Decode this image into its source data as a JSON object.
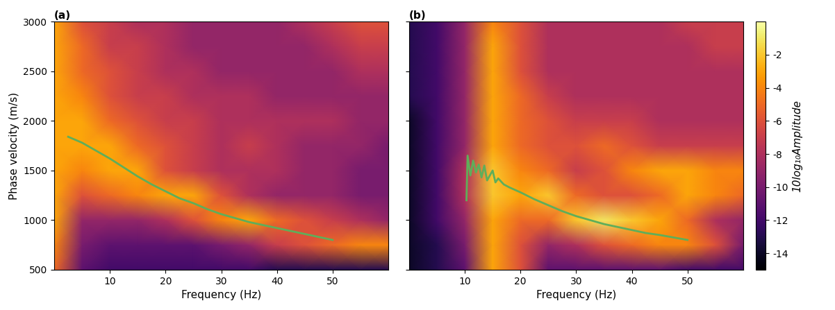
{
  "chart_data": [
    {
      "type": "heatmap",
      "title": "(a)",
      "x_label": "Frequency (Hz)",
      "y_label": "Phase velocity (m/s)",
      "x": [
        0,
        5,
        10,
        15,
        20,
        25,
        30,
        35,
        40,
        45,
        50,
        55,
        60
      ],
      "y": [
        500,
        750,
        1000,
        1250,
        1500,
        1750,
        2000,
        2250,
        2500,
        2750,
        3000
      ],
      "cells": [
        [
          -5,
          -11,
          -12,
          -12,
          -12,
          -12,
          -12,
          -12,
          -13,
          -13,
          -13,
          -13,
          -13
        ],
        [
          -4,
          -10,
          -11,
          -11,
          -11,
          -11,
          -10,
          -9,
          -7,
          -6,
          -5,
          -4,
          -4
        ],
        [
          -3,
          -9,
          -9,
          -9,
          -8,
          -6,
          -4,
          -3,
          -5,
          -6,
          -7,
          -8,
          -9
        ],
        [
          -3,
          -6,
          -5,
          -4,
          -3,
          -3,
          -6,
          -8,
          -9,
          -9,
          -9,
          -10,
          -10
        ],
        [
          -3,
          -4,
          -3,
          -3,
          -6,
          -7,
          -8,
          -8,
          -8,
          -9,
          -9,
          -10,
          -10
        ],
        [
          -3,
          -3,
          -3,
          -5,
          -6,
          -7,
          -8,
          -7,
          -8,
          -9,
          -9,
          -9,
          -10
        ],
        [
          -3,
          -3,
          -5,
          -6,
          -7,
          -7,
          -8,
          -8,
          -8,
          -8,
          -8,
          -9,
          -9
        ],
        [
          -3,
          -4,
          -6,
          -7,
          -7,
          -8,
          -8,
          -8,
          -9,
          -9,
          -9,
          -9,
          -9
        ],
        [
          -3,
          -5,
          -6,
          -7,
          -8,
          -8,
          -9,
          -9,
          -9,
          -9,
          -9,
          -8,
          -8
        ],
        [
          -3,
          -5,
          -7,
          -7,
          -8,
          -9,
          -9,
          -9,
          -9,
          -9,
          -8,
          -7,
          -7
        ],
        [
          -3,
          -6,
          -7,
          -8,
          -8,
          -9,
          -9,
          -9,
          -9,
          -8,
          -7,
          -6,
          -6
        ]
      ],
      "line": {
        "color": "#5fae5a",
        "line_style": "solid",
        "x": [
          2.5,
          5,
          7.5,
          10,
          12.5,
          15,
          17.5,
          20,
          22.5,
          25,
          27.5,
          30,
          32.5,
          35,
          37.5,
          40,
          42.5,
          45,
          47.5,
          50
        ],
        "values": [
          1840,
          1780,
          1700,
          1620,
          1530,
          1440,
          1360,
          1290,
          1220,
          1170,
          1110,
          1060,
          1020,
          980,
          950,
          920,
          890,
          860,
          830,
          800
        ]
      },
      "xlim": [
        0,
        60
      ],
      "xticks": [
        10,
        20,
        30,
        40,
        50
      ],
      "ylim": [
        500,
        3000
      ],
      "yticks": [
        500,
        1000,
        1500,
        2000,
        2500,
        3000
      ]
    },
    {
      "type": "heatmap",
      "title": "(b)",
      "x_label": "Frequency (Hz)",
      "tick_labels": "x",
      "x": [
        0,
        5,
        10,
        15,
        20,
        25,
        30,
        35,
        40,
        45,
        50,
        55,
        60
      ],
      "y": [
        500,
        750,
        1000,
        1250,
        1500,
        1750,
        2000,
        2250,
        2500,
        2750,
        3000
      ],
      "cells": [
        [
          -14,
          -13,
          -11,
          -3,
          -6,
          -11,
          -11,
          -11,
          -11,
          -11,
          -12,
          -12,
          -12
        ],
        [
          -14,
          -13,
          -10,
          -3,
          -6,
          -9,
          -8,
          -6,
          -5,
          -4,
          -4,
          -6,
          -10
        ],
        [
          -14,
          -12,
          -9,
          -3,
          -5,
          -5,
          -2,
          -1,
          -2,
          -3,
          -5,
          -8,
          -9
        ],
        [
          -14,
          -12,
          -8,
          -2,
          -3,
          -2,
          -5,
          -6,
          -6,
          -5,
          -3,
          -4,
          -5
        ],
        [
          -14,
          -12,
          -8,
          -2,
          -4,
          -5,
          -7,
          -6,
          -4,
          -3,
          -3,
          -4,
          -4
        ],
        [
          -14,
          -12,
          -9,
          -3,
          -5,
          -6,
          -6,
          -5,
          -6,
          -7,
          -7,
          -7,
          -7
        ],
        [
          -14,
          -12,
          -9,
          -3,
          -5,
          -6,
          -7,
          -7,
          -7,
          -8,
          -8,
          -8,
          -8
        ],
        [
          -13,
          -12,
          -9,
          -3,
          -5,
          -7,
          -8,
          -8,
          -8,
          -8,
          -8,
          -8,
          -8
        ],
        [
          -13,
          -12,
          -9,
          -3,
          -6,
          -8,
          -8,
          -8,
          -8,
          -8,
          -8,
          -8,
          -8
        ],
        [
          -13,
          -12,
          -9,
          -3,
          -6,
          -8,
          -8,
          -8,
          -8,
          -8,
          -8,
          -7,
          -7
        ],
        [
          -13,
          -12,
          -9,
          -4,
          -6,
          -8,
          -8,
          -8,
          -8,
          -8,
          -7,
          -7,
          -7
        ]
      ],
      "line": {
        "color": "#5fae5a",
        "line_style": "solid",
        "x": [
          10.3,
          10.5,
          11,
          11.5,
          12,
          12.5,
          13,
          13.5,
          14,
          15,
          15.5,
          16,
          17,
          18,
          20,
          22.5,
          25,
          27.5,
          30,
          32.5,
          35,
          37.5,
          40,
          42.5,
          45,
          47.5,
          50
        ],
        "values": [
          1200,
          1650,
          1450,
          1600,
          1480,
          1560,
          1430,
          1550,
          1400,
          1500,
          1380,
          1420,
          1360,
          1330,
          1280,
          1210,
          1150,
          1090,
          1040,
          1000,
          960,
          930,
          900,
          870,
          850,
          825,
          800
        ]
      },
      "xlim": [
        0,
        60
      ],
      "xticks": [
        10,
        20,
        30,
        40,
        50
      ],
      "ylim": [
        500,
        3000
      ],
      "yticks": [
        500,
        1000,
        1500,
        2000,
        2500,
        3000
      ],
      "colorbar": {
        "label": "10log₁₀Amplitude",
        "range": [
          -15,
          0
        ],
        "ticks": [
          -14,
          -12,
          -10,
          -8,
          -6,
          -4,
          -2
        ]
      }
    }
  ]
}
